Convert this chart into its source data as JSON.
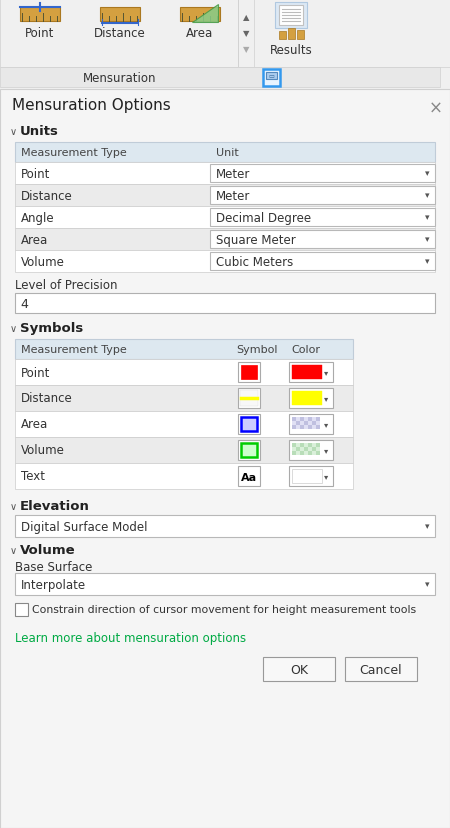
{
  "bg_color": "#f0f0f0",
  "dialog_bg": "#f5f5f5",
  "toolbar_bg": "#f0f0f0",
  "title": "Mensuration Options",
  "toolbar_label": "Mensuration",
  "section_units": "Units",
  "units_header": [
    "Measurement Type",
    "Unit"
  ],
  "units_rows": [
    [
      "Point",
      "Meter"
    ],
    [
      "Distance",
      "Meter"
    ],
    [
      "Angle",
      "Decimal Degree"
    ],
    [
      "Area",
      "Square Meter"
    ],
    [
      "Volume",
      "Cubic Meters"
    ]
  ],
  "precision_label": "Level of Precision",
  "precision_value": "4",
  "section_symbols": "Symbols",
  "symbols_header": [
    "Measurement Type",
    "Symbol",
    "Color"
  ],
  "symbols_rows": [
    {
      "type": "Point",
      "symbol_type": "solid_red",
      "color_swatch": "#ff0000"
    },
    {
      "type": "Distance",
      "symbol_type": "line_yellow",
      "color_swatch": "#ffff00"
    },
    {
      "type": "Area",
      "symbol_type": "hollow_blue",
      "color_swatch": "checker_blue"
    },
    {
      "type": "Volume",
      "symbol_type": "hollow_green",
      "color_swatch": "checker_green"
    },
    {
      "type": "Text",
      "symbol_type": "text_aa",
      "color_swatch": "#ffffff"
    }
  ],
  "section_elevation": "Elevation",
  "elevation_value": "Digital Surface Model",
  "section_volume": "Volume",
  "base_surface_label": "Base Surface",
  "base_surface_value": "Interpolate",
  "constrain_label": "Constrain direction of cursor movement for height measurement tools",
  "learn_more": "Learn more about mensuration options",
  "btn_ok": "OK",
  "btn_cancel": "Cancel",
  "header_color": "#dde8f0",
  "row_alt_color": "#ebebeb",
  "row_color": "#ffffff",
  "link_color": "#00aa44",
  "text_color": "#333333"
}
